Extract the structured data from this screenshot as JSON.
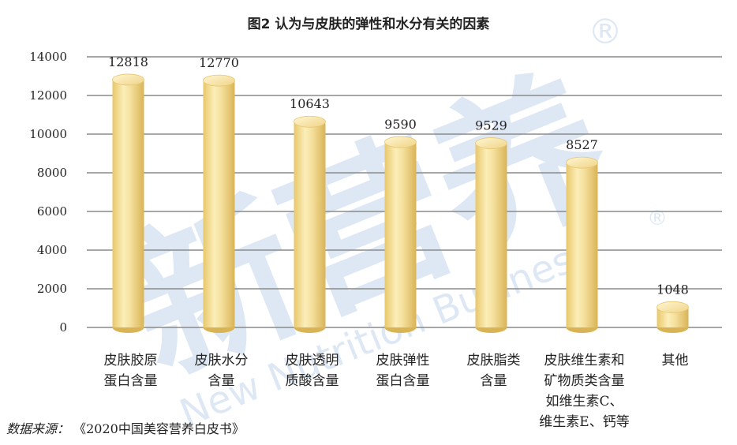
{
  "chart_data": {
    "type": "bar",
    "title": "图2  认为与皮肤的弹性和水分有关的因素",
    "categories": [
      [
        "皮肤胶原",
        "蛋白含量"
      ],
      [
        "皮肤水分",
        "含量"
      ],
      [
        "皮肤透明",
        "质酸含量"
      ],
      [
        "皮肤弹性",
        "蛋白含量"
      ],
      [
        "皮肤脂类",
        "含量"
      ],
      [
        "皮肤维生素和",
        "矿物质类含量",
        "如维生素C、",
        "维生素E、钙等"
      ],
      [
        "其他"
      ]
    ],
    "values": [
      12818,
      12770,
      10643,
      9590,
      9529,
      8527,
      1048
    ],
    "ylim": [
      0,
      14000
    ],
    "yticks": [
      0,
      2000,
      4000,
      6000,
      8000,
      10000,
      12000,
      14000
    ],
    "grid": true,
    "bar_color": "#f2d98a"
  },
  "source": {
    "label": "数据来源：",
    "text": "《2020中国美容营养白皮书》"
  },
  "watermark": {
    "cn": "新营养",
    "en": "New Nutrition Business",
    "mark": "®"
  }
}
